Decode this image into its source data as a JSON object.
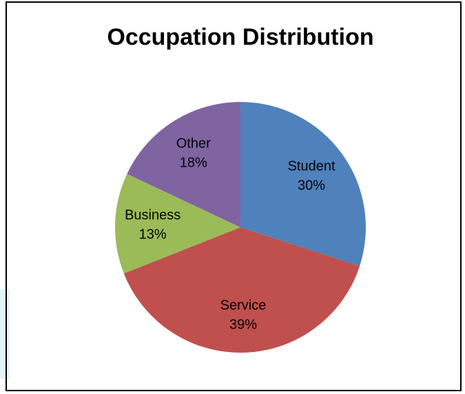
{
  "chart_data": {
    "type": "pie",
    "title": "Occupation Distribution",
    "categories": [
      "Student",
      "Service",
      "Business",
      "Other"
    ],
    "values": [
      30,
      39,
      13,
      18
    ],
    "value_labels": [
      "30%",
      "39%",
      "13%",
      "18%"
    ],
    "colors": [
      "#4f81bd",
      "#c0504d",
      "#9bbb59",
      "#8064a2"
    ]
  }
}
